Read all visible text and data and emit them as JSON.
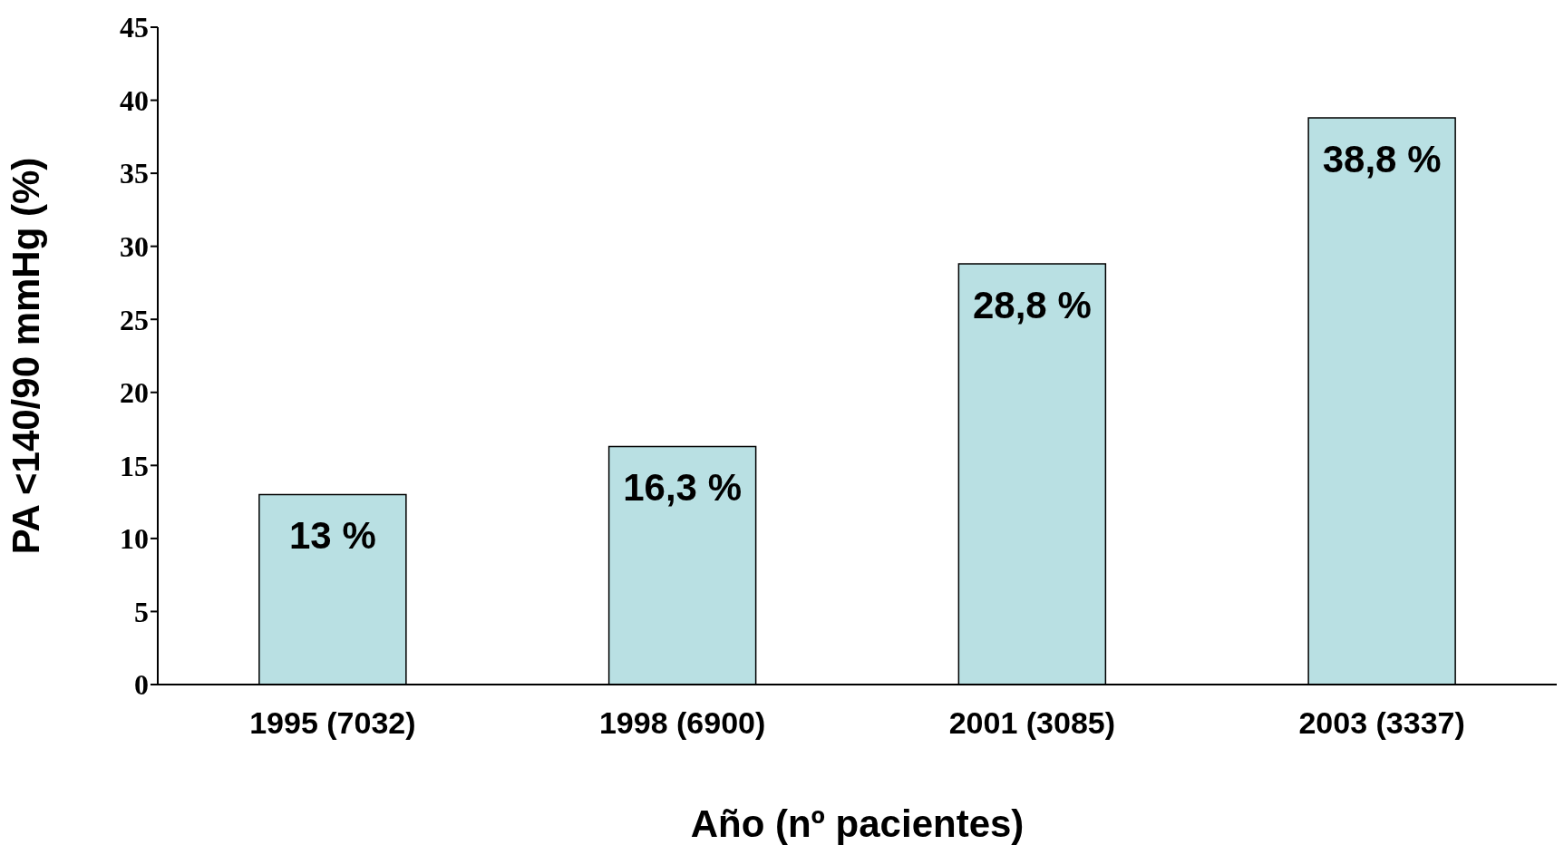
{
  "chart_data": {
    "type": "bar",
    "xlabel": "Año (nº pacientes)",
    "ylabel": "PA <140/90 mmHg (%)",
    "categories": [
      "1995 (7032)",
      "1998 (6900)",
      "2001 (3085)",
      "2003 (3337)"
    ],
    "values": [
      13,
      16.3,
      28.8,
      38.8
    ],
    "value_labels": [
      "13 %",
      "16,3 %",
      "28,8 %",
      "38,8 %"
    ],
    "color": "#b9e0e3",
    "ylim": [
      0,
      45
    ],
    "yticks": [
      0,
      5,
      10,
      15,
      20,
      25,
      30,
      35,
      40,
      45
    ],
    "grid": false,
    "legend": false
  }
}
